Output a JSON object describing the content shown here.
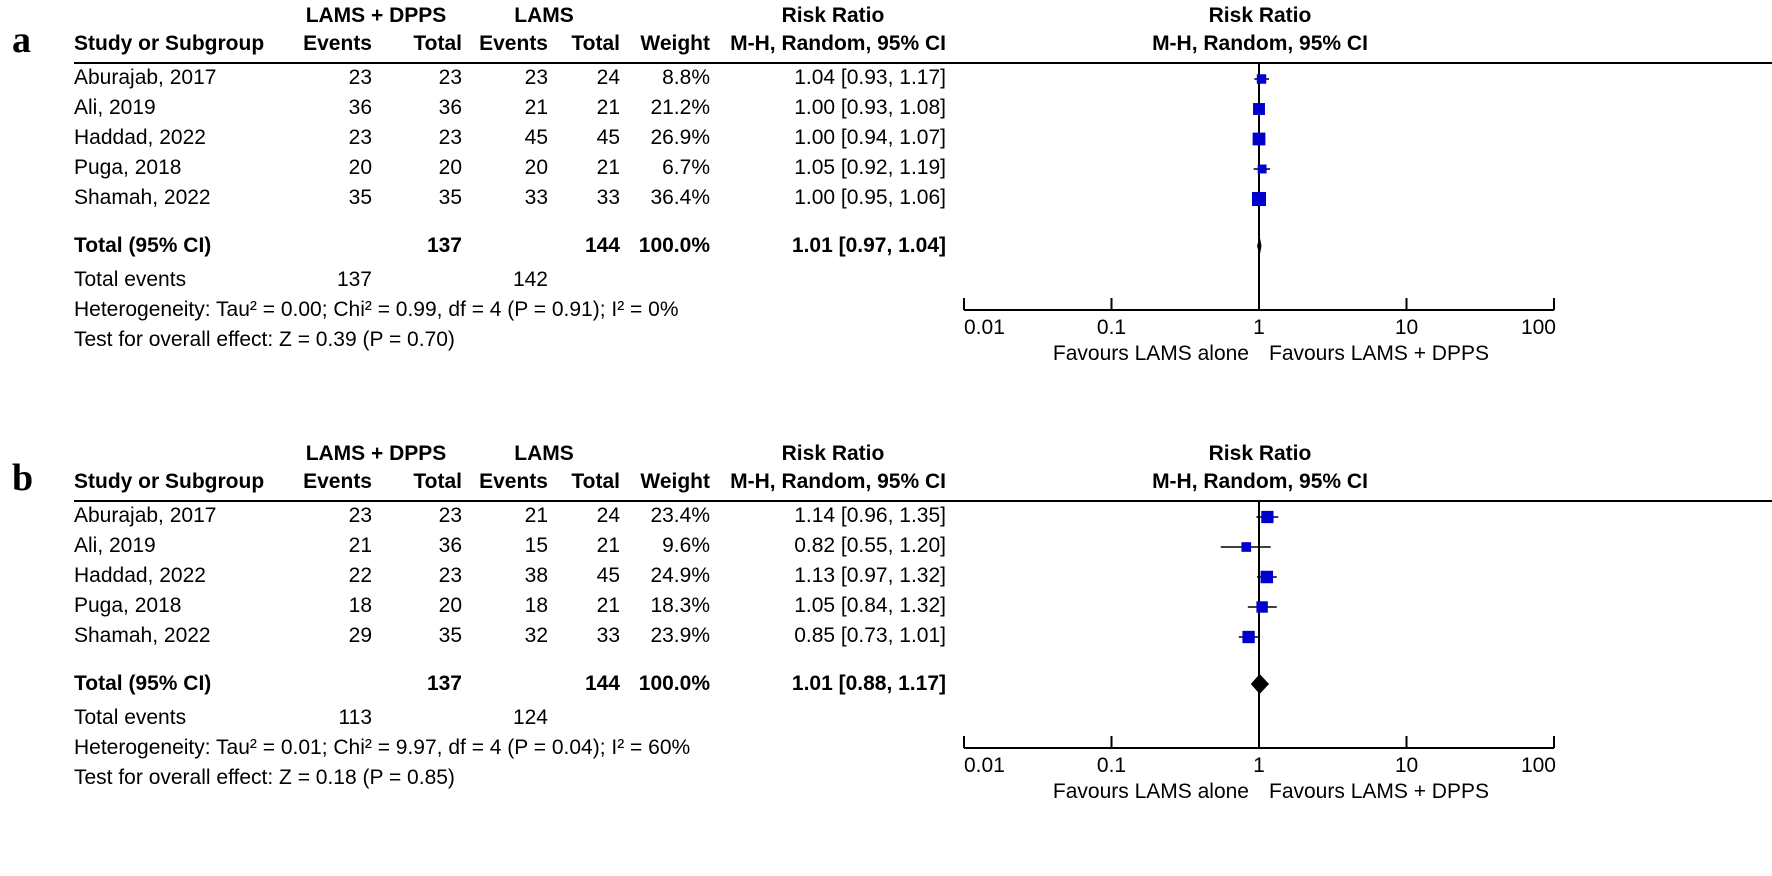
{
  "panels": [
    {
      "letter": "a",
      "group_headers": {
        "exp": "LAMS + DPPS",
        "ctl": "LAMS",
        "rr_left": "Risk Ratio",
        "rr_right": "Risk Ratio"
      },
      "col_headers": {
        "study": "Study or Subgroup",
        "exp_events": "Events",
        "exp_total": "Total",
        "ctl_events": "Events",
        "ctl_total": "Total",
        "weight": "Weight",
        "method_left": "M-H, Random, 95% CI",
        "method_right": "M-H, Random, 95% CI"
      },
      "rows": [
        {
          "study": "Aburajab, 2017",
          "exp_events": "23",
          "exp_total": "23",
          "ctl_events": "23",
          "ctl_total": "24",
          "weight": "8.8%",
          "ci_text": "1.04 [0.93, 1.17]"
        },
        {
          "study": "Ali, 2019",
          "exp_events": "36",
          "exp_total": "36",
          "ctl_events": "21",
          "ctl_total": "21",
          "weight": "21.2%",
          "ci_text": "1.00 [0.93, 1.08]"
        },
        {
          "study": "Haddad, 2022",
          "exp_events": "23",
          "exp_total": "23",
          "ctl_events": "45",
          "ctl_total": "45",
          "weight": "26.9%",
          "ci_text": "1.00 [0.94, 1.07]"
        },
        {
          "study": "Puga, 2018",
          "exp_events": "20",
          "exp_total": "20",
          "ctl_events": "20",
          "ctl_total": "21",
          "weight": "6.7%",
          "ci_text": "1.05 [0.92, 1.19]"
        },
        {
          "study": "Shamah, 2022",
          "exp_events": "35",
          "exp_total": "35",
          "ctl_events": "33",
          "ctl_total": "33",
          "weight": "36.4%",
          "ci_text": "1.00 [0.95, 1.06]"
        }
      ],
      "total": {
        "label": "Total (95% CI)",
        "exp_total": "137",
        "ctl_total": "144",
        "weight": "100.0%",
        "ci_text": "1.01 [0.97, 1.04]"
      },
      "total_events": {
        "label": "Total events",
        "exp": "137",
        "ctl": "142"
      },
      "heterogeneity": "Heterogeneity: Tau² = 0.00; Chi² = 0.99, df = 4 (P = 0.91); I² = 0%",
      "overall_effect": "Test for overall effect: Z = 0.39 (P = 0.70)",
      "axis": {
        "ticks": [
          "0.01",
          "0.1",
          "1",
          "10",
          "100"
        ],
        "favours_left": "Favours LAMS alone",
        "favours_right": "Favours LAMS + DPPS"
      }
    },
    {
      "letter": "b",
      "group_headers": {
        "exp": "LAMS + DPPS",
        "ctl": "LAMS",
        "rr_left": "Risk Ratio",
        "rr_right": "Risk Ratio"
      },
      "col_headers": {
        "study": "Study or Subgroup",
        "exp_events": "Events",
        "exp_total": "Total",
        "ctl_events": "Events",
        "ctl_total": "Total",
        "weight": "Weight",
        "method_left": "M-H, Random, 95% CI",
        "method_right": "M-H, Random, 95% CI"
      },
      "rows": [
        {
          "study": "Aburajab, 2017",
          "exp_events": "23",
          "exp_total": "23",
          "ctl_events": "21",
          "ctl_total": "24",
          "weight": "23.4%",
          "ci_text": "1.14 [0.96, 1.35]"
        },
        {
          "study": "Ali, 2019",
          "exp_events": "21",
          "exp_total": "36",
          "ctl_events": "15",
          "ctl_total": "21",
          "weight": "9.6%",
          "ci_text": "0.82 [0.55, 1.20]"
        },
        {
          "study": "Haddad, 2022",
          "exp_events": "22",
          "exp_total": "23",
          "ctl_events": "38",
          "ctl_total": "45",
          "weight": "24.9%",
          "ci_text": "1.13 [0.97, 1.32]"
        },
        {
          "study": "Puga, 2018",
          "exp_events": "18",
          "exp_total": "20",
          "ctl_events": "18",
          "ctl_total": "21",
          "weight": "18.3%",
          "ci_text": "1.05 [0.84, 1.32]"
        },
        {
          "study": "Shamah, 2022",
          "exp_events": "29",
          "exp_total": "35",
          "ctl_events": "32",
          "ctl_total": "33",
          "weight": "23.9%",
          "ci_text": "0.85 [0.73, 1.01]"
        }
      ],
      "total": {
        "label": "Total (95% CI)",
        "exp_total": "137",
        "ctl_total": "144",
        "weight": "100.0%",
        "ci_text": "1.01 [0.88, 1.17]"
      },
      "total_events": {
        "label": "Total events",
        "exp": "113",
        "ctl": "124"
      },
      "heterogeneity": "Heterogeneity: Tau² = 0.01; Chi² = 9.97, df = 4 (P = 0.04); I² = 60%",
      "overall_effect": "Test for overall effect: Z = 0.18 (P = 0.85)",
      "axis": {
        "ticks": [
          "0.01",
          "0.1",
          "1",
          "10",
          "100"
        ],
        "favours_left": "Favours LAMS alone",
        "favours_right": "Favours LAMS + DPPS"
      }
    }
  ],
  "chart_data": [
    {
      "type": "forest",
      "measure": "Risk Ratio",
      "method": "M-H, Random, 95% CI",
      "x_scale": "log",
      "xlim": [
        0.01,
        100
      ],
      "null_line": 1,
      "studies": [
        {
          "name": "Aburajab, 2017",
          "rr": 1.04,
          "lower": 0.93,
          "upper": 1.17,
          "weight": 8.8
        },
        {
          "name": "Ali, 2019",
          "rr": 1.0,
          "lower": 0.93,
          "upper": 1.08,
          "weight": 21.2
        },
        {
          "name": "Haddad, 2022",
          "rr": 1.0,
          "lower": 0.94,
          "upper": 1.07,
          "weight": 26.9
        },
        {
          "name": "Puga, 2018",
          "rr": 1.05,
          "lower": 0.92,
          "upper": 1.19,
          "weight": 6.7
        },
        {
          "name": "Shamah, 2022",
          "rr": 1.0,
          "lower": 0.95,
          "upper": 1.06,
          "weight": 36.4
        }
      ],
      "pooled": {
        "rr": 1.01,
        "lower": 0.97,
        "upper": 1.04
      },
      "colors": {
        "study_box": "#0000cc",
        "pooled_diamond": "#000000"
      }
    },
    {
      "type": "forest",
      "measure": "Risk Ratio",
      "method": "M-H, Random, 95% CI",
      "x_scale": "log",
      "xlim": [
        0.01,
        100
      ],
      "null_line": 1,
      "studies": [
        {
          "name": "Aburajab, 2017",
          "rr": 1.14,
          "lower": 0.96,
          "upper": 1.35,
          "weight": 23.4
        },
        {
          "name": "Ali, 2019",
          "rr": 0.82,
          "lower": 0.55,
          "upper": 1.2,
          "weight": 9.6
        },
        {
          "name": "Haddad, 2022",
          "rr": 1.13,
          "lower": 0.97,
          "upper": 1.32,
          "weight": 24.9
        },
        {
          "name": "Puga, 2018",
          "rr": 1.05,
          "lower": 0.84,
          "upper": 1.32,
          "weight": 18.3
        },
        {
          "name": "Shamah, 2022",
          "rr": 0.85,
          "lower": 0.73,
          "upper": 1.01,
          "weight": 23.9
        }
      ],
      "pooled": {
        "rr": 1.01,
        "lower": 0.88,
        "upper": 1.17
      },
      "colors": {
        "study_box": "#0000cc",
        "pooled_diamond": "#000000"
      }
    }
  ]
}
